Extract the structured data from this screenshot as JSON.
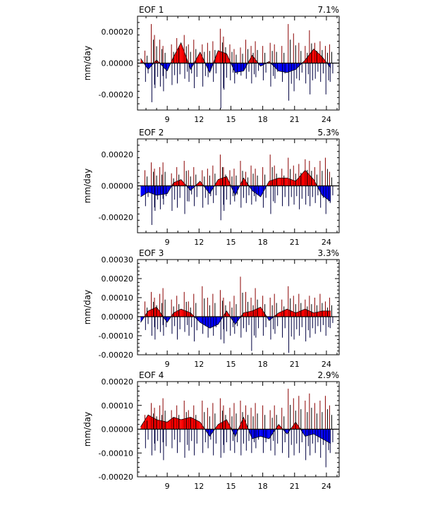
{
  "colors": {
    "positive": "#ff0000",
    "negative": "#0000ff",
    "line": "#000000",
    "frame": "#000000"
  },
  "chart_data": [
    {
      "type": "area",
      "title": "EOF 1",
      "variance": "7.1%",
      "ylabel": "mm/day",
      "xlim": [
        6.2,
        25.2
      ],
      "ylim": [
        -0.0003,
        0.0003
      ],
      "xticks": [
        9,
        12,
        15,
        18,
        21,
        24
      ],
      "xtick_labels": [
        "9",
        "12",
        "15",
        "18",
        "21",
        "24"
      ],
      "yticks": [
        0.0002,
        0.0,
        -0.0002
      ],
      "ytick_labels": [
        "0.00020",
        "0.00000",
        "-0.00020"
      ],
      "grid": false,
      "envelope": {
        "x": [
          6.5,
          7.2,
          8.0,
          9.0,
          9.6,
          10.3,
          11.2,
          12.1,
          13.0,
          13.8,
          14.6,
          15.4,
          16.2,
          17.0,
          17.8,
          18.6,
          19.5,
          20.3,
          21.1,
          22.0,
          22.8,
          23.6,
          24.4
        ],
        "y": [
          3e-05,
          -4e-05,
          2e-05,
          -5e-05,
          4e-05,
          0.00013,
          -4e-05,
          7e-05,
          -6e-05,
          8e-05,
          6e-05,
          -6e-05,
          -5e-05,
          5e-05,
          -2e-05,
          1e-05,
          -5e-05,
          -6e-05,
          -4e-05,
          2e-05,
          9e-05,
          4e-05,
          -3e-05
        ]
      },
      "spikes": {
        "x": [
          6.9,
          7.5,
          7.8,
          8.3,
          8.6,
          9.4,
          9.9,
          10.6,
          11.0,
          11.5,
          12.3,
          12.8,
          13.3,
          14.0,
          14.3,
          14.9,
          15.3,
          15.9,
          16.4,
          16.9,
          17.3,
          18.0,
          18.7,
          19.1,
          19.8,
          20.4,
          20.9,
          21.4,
          22.0,
          22.4,
          22.9,
          23.4,
          23.9,
          24.3
        ],
        "high": [
          8e-05,
          0.00025,
          0.00018,
          0.00015,
          0.00011,
          0.00012,
          0.00016,
          0.00018,
          0.00012,
          0.00015,
          0.00012,
          0.00013,
          0.00014,
          0.00022,
          0.00017,
          0.00012,
          9e-05,
          0.0001,
          0.00015,
          0.00011,
          0.00014,
          0.00011,
          0.00013,
          0.00012,
          0.00011,
          0.00025,
          0.00019,
          0.00013,
          0.00011,
          0.00021,
          0.00013,
          0.00014,
          0.00011,
          0.00012
        ],
        "low": [
          -0.00012,
          -0.00025,
          -0.00016,
          -0.00015,
          -0.00018,
          -0.00014,
          -0.00013,
          -0.0001,
          -0.00012,
          -0.00016,
          -0.00015,
          -9e-05,
          -0.00012,
          -0.00029,
          -0.00017,
          -0.00011,
          -0.00013,
          -8e-05,
          -0.0001,
          -0.00013,
          -9e-05,
          -0.00011,
          -0.00015,
          -0.0001,
          -0.00012,
          -0.00024,
          -0.00018,
          -0.00011,
          -0.00013,
          -0.0002,
          -0.0001,
          -0.00012,
          -0.0002,
          -0.00012
        ]
      }
    },
    {
      "type": "area",
      "title": "EOF 2",
      "variance": "5.3%",
      "ylabel": "mm/day",
      "xlim": [
        6.2,
        25.2
      ],
      "ylim": [
        -0.0003,
        0.0003
      ],
      "xticks": [
        9,
        12,
        15,
        18,
        21,
        24
      ],
      "xtick_labels": [
        "9",
        "12",
        "15",
        "18",
        "21",
        "24"
      ],
      "yticks": [
        0.0002,
        0.0,
        -0.0002
      ],
      "ytick_labels": [
        "0.00020",
        "0.00000",
        "-0.00020"
      ],
      "grid": false,
      "envelope": {
        "x": [
          6.5,
          7.2,
          8.0,
          9.0,
          9.6,
          10.3,
          11.2,
          12.1,
          13.0,
          13.8,
          14.6,
          15.4,
          16.2,
          17.0,
          17.8,
          18.6,
          19.5,
          20.3,
          21.1,
          22.0,
          22.8,
          23.6,
          24.4
        ],
        "y": [
          -7e-05,
          -4e-05,
          -6e-05,
          -5e-05,
          2e-05,
          4e-05,
          -3e-05,
          3e-05,
          -5e-05,
          4e-05,
          6e-05,
          -6e-05,
          5e-05,
          -3e-05,
          -7e-05,
          3e-05,
          5e-05,
          5e-05,
          3e-05,
          0.0001,
          4e-05,
          -6e-05,
          -0.0001
        ]
      },
      "spikes": {
        "x": [
          6.9,
          7.5,
          7.8,
          8.3,
          8.6,
          9.4,
          9.9,
          10.6,
          11.0,
          11.5,
          12.3,
          12.8,
          13.3,
          14.0,
          14.3,
          14.9,
          15.3,
          15.9,
          16.4,
          16.9,
          17.3,
          18.0,
          18.7,
          19.1,
          19.8,
          20.4,
          20.9,
          21.4,
          22.0,
          22.4,
          22.9,
          23.4,
          23.9,
          24.3
        ],
        "high": [
          0.0001,
          0.00015,
          0.00011,
          0.00012,
          0.00015,
          8e-05,
          0.00012,
          0.00016,
          0.0001,
          0.00012,
          0.0001,
          0.00011,
          0.00013,
          0.0002,
          0.00012,
          0.0001,
          0.00011,
          0.00016,
          9e-05,
          0.00013,
          0.00011,
          0.00012,
          0.0002,
          0.00013,
          0.00011,
          0.00018,
          0.00013,
          0.00014,
          0.00017,
          0.00016,
          0.00012,
          0.00016,
          0.00018,
          9e-05
        ],
        "low": [
          -0.00013,
          -0.00025,
          -0.00016,
          -0.00015,
          -0.00012,
          -0.00016,
          -0.00014,
          -0.00018,
          -0.0001,
          -0.00013,
          -0.00014,
          -0.00012,
          -0.00011,
          -0.00022,
          -0.00016,
          -0.00012,
          -0.0001,
          -0.00014,
          -0.00011,
          -0.00012,
          -0.0001,
          -0.00014,
          -0.00018,
          -0.00011,
          -0.00013,
          -0.00013,
          -0.00012,
          -0.00015,
          -0.00012,
          -0.00013,
          -0.00011,
          -0.00014,
          -0.00018,
          -0.00011
        ]
      }
    },
    {
      "type": "area",
      "title": "EOF 3",
      "variance": "3.3%",
      "ylabel": "mm/day",
      "xlim": [
        6.2,
        25.2
      ],
      "ylim": [
        -0.0002,
        0.0003
      ],
      "xticks": [
        9,
        12,
        15,
        18,
        21,
        24
      ],
      "xtick_labels": [
        "9",
        "12",
        "15",
        "18",
        "21",
        "24"
      ],
      "yticks": [
        0.0003,
        0.0002,
        0.0001,
        0.0,
        -0.0001,
        -0.0002
      ],
      "ytick_labels": [
        "0.00030",
        "0.00020",
        "0.00010",
        "0.00000",
        "-0.00010",
        "-0.00020"
      ],
      "grid": false,
      "envelope": {
        "x": [
          6.5,
          7.2,
          8.0,
          9.0,
          9.6,
          10.3,
          11.2,
          12.1,
          13.0,
          13.8,
          14.6,
          15.4,
          16.2,
          17.0,
          17.8,
          18.6,
          19.5,
          20.3,
          21.1,
          22.0,
          22.8,
          23.6,
          24.4
        ],
        "y": [
          -3e-05,
          3e-05,
          5e-05,
          -3e-05,
          2e-05,
          4e-05,
          2e-05,
          -3e-05,
          -6e-05,
          -4e-05,
          3e-05,
          -4e-05,
          2e-05,
          3e-05,
          5e-05,
          -2e-05,
          2e-05,
          4e-05,
          2e-05,
          4e-05,
          2e-05,
          3e-05,
          3e-05
        ]
      },
      "spikes": {
        "x": [
          6.9,
          7.5,
          7.8,
          8.3,
          8.6,
          9.4,
          9.9,
          10.6,
          11.0,
          11.5,
          12.3,
          12.8,
          13.3,
          14.0,
          14.3,
          14.9,
          15.3,
          15.9,
          16.4,
          16.9,
          17.3,
          18.0,
          18.7,
          19.1,
          19.8,
          20.4,
          20.9,
          21.4,
          22.0,
          22.4,
          22.9,
          23.4,
          23.9,
          24.3
        ],
        "high": [
          8e-05,
          0.00013,
          0.0001,
          0.00012,
          0.00015,
          9e-05,
          0.00011,
          0.00013,
          8e-05,
          0.00012,
          0.00016,
          0.0001,
          0.00012,
          0.00014,
          0.0001,
          8e-05,
          0.00011,
          0.00021,
          0.00013,
          0.0001,
          0.00015,
          0.00011,
          0.0001,
          0.00012,
          9e-05,
          0.00016,
          0.00011,
          0.00012,
          9e-05,
          0.00011,
          0.0001,
          0.00012,
          8e-05,
          0.0001
        ],
        "low": [
          -7e-05,
          -0.0001,
          -0.00012,
          -8e-05,
          -0.0001,
          -9e-05,
          -0.00012,
          -8e-05,
          -0.0001,
          -0.00013,
          -9e-05,
          -0.00011,
          -0.0001,
          -0.00012,
          -0.00014,
          -0.0001,
          -9e-05,
          -0.00011,
          -8e-05,
          -0.00018,
          -0.00011,
          -0.0001,
          -0.00012,
          -9e-05,
          -0.00011,
          -0.00019,
          -0.00012,
          -0.0001,
          -0.00013,
          -0.00011,
          -9e-05,
          -8e-05,
          -0.0001,
          -6e-05
        ]
      }
    },
    {
      "type": "area",
      "title": "EOF 4",
      "variance": "2.9%",
      "ylabel": "mm/day",
      "xlim": [
        6.2,
        25.2
      ],
      "ylim": [
        -0.0002,
        0.0002
      ],
      "xticks": [
        9,
        12,
        15,
        18,
        21,
        24
      ],
      "xtick_labels": [
        "9",
        "12",
        "15",
        "18",
        "21",
        "24"
      ],
      "yticks": [
        0.0002,
        0.0001,
        0.0,
        -0.0001,
        -0.0002
      ],
      "ytick_labels": [
        "0.00020",
        "0.00010",
        "0.00000",
        "-0.00010",
        "-0.00020"
      ],
      "grid": false,
      "envelope": {
        "x": [
          6.5,
          7.2,
          8.0,
          9.0,
          9.6,
          10.3,
          11.2,
          12.1,
          13.0,
          13.8,
          14.6,
          15.4,
          16.2,
          17.0,
          17.8,
          18.6,
          19.5,
          20.3,
          21.1,
          22.0,
          22.8,
          23.6,
          24.4
        ],
        "y": [
          1e-05,
          6e-05,
          4e-05,
          3e-05,
          5e-05,
          4e-05,
          5e-05,
          3e-05,
          -3e-05,
          2e-05,
          4e-05,
          -3e-05,
          5e-05,
          -4e-05,
          -3e-05,
          -4e-05,
          2e-05,
          -2e-05,
          3e-05,
          -3e-05,
          -2e-05,
          -4e-05,
          -6e-05
        ]
      },
      "spikes": {
        "x": [
          6.9,
          7.5,
          7.8,
          8.3,
          8.6,
          9.4,
          9.9,
          10.6,
          11.0,
          11.5,
          12.3,
          12.8,
          13.3,
          14.0,
          14.3,
          14.9,
          15.3,
          15.9,
          16.4,
          16.9,
          17.3,
          18.0,
          18.7,
          19.1,
          19.8,
          20.4,
          20.9,
          21.4,
          22.0,
          22.4,
          22.9,
          23.4,
          23.9,
          24.3
        ],
        "high": [
          6e-05,
          0.00011,
          9e-05,
          0.0001,
          0.00013,
          8e-05,
          0.0001,
          0.00012,
          8e-05,
          0.0001,
          0.00012,
          9e-05,
          0.00011,
          0.00013,
          0.0001,
          9e-05,
          0.00011,
          0.00012,
          0.0001,
          9e-05,
          0.00011,
          0.0001,
          8e-05,
          0.0001,
          9e-05,
          0.00017,
          0.00013,
          0.00014,
          0.00012,
          0.00015,
          0.00011,
          0.00012,
          0.00014,
          0.0001
        ],
        "low": [
          -8e-05,
          -0.00011,
          -9e-05,
          -0.0001,
          -0.00013,
          -8e-05,
          -0.0001,
          -0.00012,
          -9e-05,
          -0.00011,
          -0.0001,
          -8e-05,
          -0.00011,
          -0.00012,
          -0.0001,
          -9e-05,
          -0.0001,
          -0.00011,
          -9e-05,
          -0.0001,
          -8e-05,
          -0.0001,
          -9e-05,
          -0.00011,
          -0.0001,
          -0.00012,
          -0.00011,
          -0.0001,
          -0.00013,
          -0.00011,
          -0.0001,
          -0.00012,
          -0.00016,
          -0.0001
        ]
      }
    }
  ]
}
